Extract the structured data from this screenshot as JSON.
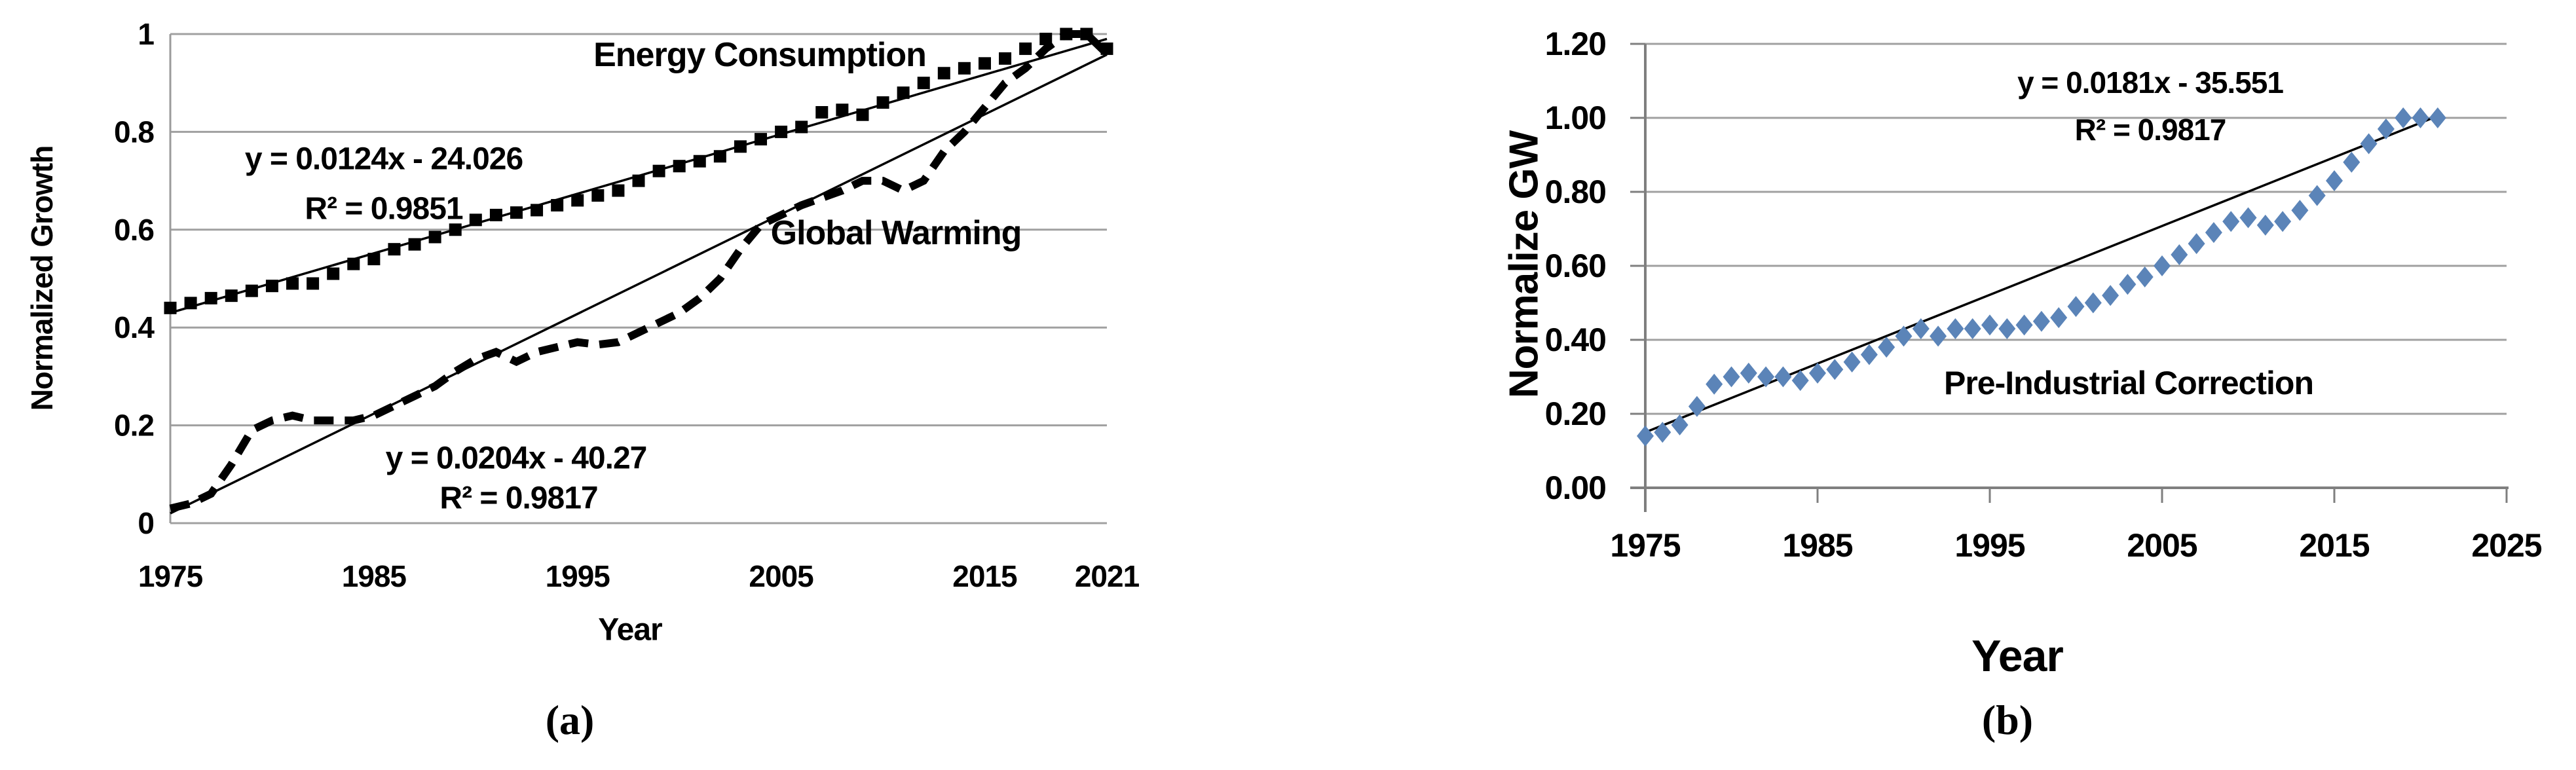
{
  "page": {
    "background": "#ffffff"
  },
  "colors": {
    "grid": "#a0a0a0",
    "axis": "#7f7f7f",
    "border": "#9b9b9b",
    "trendline": "#000000",
    "series_black": "#000000",
    "marker_blue": "#5b84b8",
    "text": "#000000"
  },
  "figures": [
    {
      "caption": "(a)"
    },
    {
      "caption": "(b)"
    }
  ],
  "chart_data": [
    {
      "type": "scatter",
      "title": "",
      "xlabel": "Year",
      "ylabel": "Normalized Growth",
      "xlim": [
        1975,
        2021
      ],
      "ylim": [
        0,
        1
      ],
      "grid": true,
      "legend": "none (inline series labels)",
      "x_ticks": [
        1975,
        1985,
        1995,
        2005,
        2015,
        2021
      ],
      "x_tick_labels": [
        "1975",
        "1985",
        "1995",
        "2005",
        "2015",
        "2021"
      ],
      "y_ticks": [
        0,
        0.2,
        0.4,
        0.6,
        0.8,
        1
      ],
      "y_tick_labels": [
        "0",
        "0.2",
        "0.4",
        "0.6",
        "0.8",
        "1"
      ],
      "x": [
        1975,
        1976,
        1977,
        1978,
        1979,
        1980,
        1981,
        1982,
        1983,
        1984,
        1985,
        1986,
        1987,
        1988,
        1989,
        1990,
        1991,
        1992,
        1993,
        1994,
        1995,
        1996,
        1997,
        1998,
        1999,
        2000,
        2001,
        2002,
        2003,
        2004,
        2005,
        2006,
        2007,
        2008,
        2009,
        2010,
        2011,
        2012,
        2013,
        2014,
        2015,
        2016,
        2017,
        2018,
        2019,
        2020,
        2021
      ],
      "series": [
        {
          "name": "Energy Consumption",
          "style": "square-markers",
          "color": "#000000",
          "values": [
            0.44,
            0.45,
            0.46,
            0.465,
            0.475,
            0.485,
            0.49,
            0.49,
            0.51,
            0.53,
            0.54,
            0.56,
            0.57,
            0.585,
            0.6,
            0.62,
            0.63,
            0.635,
            0.64,
            0.65,
            0.66,
            0.67,
            0.68,
            0.7,
            0.72,
            0.73,
            0.74,
            0.75,
            0.77,
            0.785,
            0.8,
            0.81,
            0.84,
            0.845,
            0.835,
            0.86,
            0.88,
            0.9,
            0.92,
            0.93,
            0.94,
            0.95,
            0.97,
            0.99,
            1.0,
            1.0,
            0.97
          ],
          "trendline": {
            "equation": "y = 0.0124x - 24.026",
            "r2": "R² = 0.9851",
            "start": [
              1975,
              0.43
            ],
            "end": [
              2021,
              0.99
            ]
          }
        },
        {
          "name": "Global Warming",
          "style": "dashed-line",
          "color": "#000000",
          "values": [
            0.03,
            0.04,
            0.06,
            0.12,
            0.19,
            0.21,
            0.22,
            0.21,
            0.21,
            0.21,
            0.22,
            0.24,
            0.26,
            0.28,
            0.31,
            0.335,
            0.35,
            0.33,
            0.35,
            0.36,
            0.37,
            0.365,
            0.37,
            0.39,
            0.41,
            0.43,
            0.46,
            0.5,
            0.56,
            0.61,
            0.63,
            0.65,
            0.665,
            0.68,
            0.7,
            0.7,
            0.68,
            0.7,
            0.76,
            0.8,
            0.85,
            0.9,
            0.93,
            0.97,
            1.0,
            1.0,
            0.96
          ],
          "trendline": {
            "equation": "y = 0.0204x - 40.27",
            "r2": "R² = 0.9817",
            "start": [
              1975,
              0.02
            ],
            "end": [
              2021,
              0.958
            ]
          }
        }
      ]
    },
    {
      "type": "scatter",
      "title": "",
      "xlabel": "Year",
      "ylabel": "Normalize GW",
      "xlim": [
        1975,
        2025
      ],
      "ylim": [
        0,
        1.2
      ],
      "grid": true,
      "legend": "none (inline series label)",
      "x_ticks": [
        1975,
        1985,
        1995,
        2005,
        2015,
        2025
      ],
      "x_tick_labels": [
        "1975",
        "1985",
        "1995",
        "2005",
        "2015",
        "2025"
      ],
      "y_ticks": [
        0,
        0.2,
        0.4,
        0.6,
        0.8,
        1.0,
        1.2
      ],
      "y_tick_labels": [
        "0.00",
        "0.20",
        "0.40",
        "0.60",
        "0.80",
        "1.00",
        "1.20"
      ],
      "x": [
        1975,
        1976,
        1977,
        1978,
        1979,
        1980,
        1981,
        1982,
        1983,
        1984,
        1985,
        1986,
        1987,
        1988,
        1989,
        1990,
        1991,
        1992,
        1993,
        1994,
        1995,
        1996,
        1997,
        1998,
        1999,
        2000,
        2001,
        2002,
        2003,
        2004,
        2005,
        2006,
        2007,
        2008,
        2009,
        2010,
        2011,
        2012,
        2013,
        2014,
        2015,
        2016,
        2017,
        2018,
        2019,
        2020,
        2021
      ],
      "series": [
        {
          "name": "Pre-Industrial Correction",
          "style": "diamond-markers",
          "color": "#5b84b8",
          "values": [
            0.14,
            0.15,
            0.17,
            0.22,
            0.28,
            0.3,
            0.31,
            0.3,
            0.3,
            0.29,
            0.31,
            0.32,
            0.34,
            0.36,
            0.38,
            0.41,
            0.43,
            0.41,
            0.43,
            0.43,
            0.44,
            0.43,
            0.44,
            0.45,
            0.46,
            0.49,
            0.5,
            0.52,
            0.55,
            0.57,
            0.6,
            0.63,
            0.66,
            0.69,
            0.72,
            0.73,
            0.71,
            0.72,
            0.75,
            0.79,
            0.83,
            0.88,
            0.93,
            0.97,
            1.0,
            1.0,
            1.0
          ],
          "trendline": {
            "equation": "y = 0.0181x - 35.551",
            "r2": "R² = 0.9817",
            "start": [
              1975,
              0.15
            ],
            "end": [
              2021,
              1.005
            ]
          }
        }
      ]
    }
  ]
}
